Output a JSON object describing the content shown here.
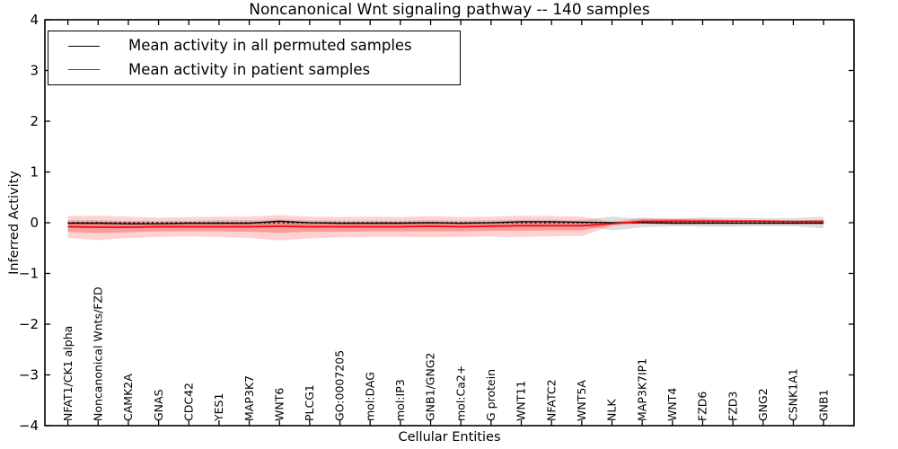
{
  "chart_data": {
    "type": "line",
    "title": "Noncanonical Wnt signaling pathway -- 140 samples",
    "xlabel": "Cellular Entities",
    "ylabel": "Inferred Activity",
    "ylim": [
      -4,
      4
    ],
    "yticks": [
      4,
      3,
      2,
      1,
      0,
      -1,
      -2,
      -3,
      -4
    ],
    "ytick_labels": [
      "4",
      "3",
      "2",
      "1",
      "0",
      "−1",
      "−2",
      "−3",
      "−4"
    ],
    "grid": false,
    "legend_position": "upper left",
    "categories": [
      "NFAT1/CK1 alpha",
      "Noncanonical Wnts/FZD",
      "CAMK2A",
      "GNAS",
      "CDC42",
      "YES1",
      "MAP3K7",
      "WNT6",
      "PLCG1",
      "GO:0007205",
      "mol:DAG",
      "mol:IP3",
      "GNB1/GNG2",
      "mol:Ca2+",
      "G protein",
      "WNT11",
      "NFATC2",
      "WNT5A",
      "NLK",
      "MAP3K7IP1",
      "WNT4",
      "FZD6",
      "FZD3",
      "GNG2",
      "CSNK1A1",
      "GNB1"
    ],
    "series": [
      {
        "name": "Mean activity in all permuted samples",
        "color": "#000000",
        "line_style": "solid",
        "values": [
          -0.01,
          -0.01,
          -0.02,
          -0.02,
          -0.01,
          -0.01,
          -0.01,
          0.03,
          0.0,
          -0.01,
          -0.01,
          -0.01,
          0.0,
          -0.01,
          0.0,
          0.02,
          0.02,
          0.01,
          0.0,
          0.0,
          -0.01,
          -0.01,
          -0.01,
          -0.01,
          -0.01,
          -0.01
        ]
      },
      {
        "name": "Mean activity in patient samples",
        "color": "#ff0000",
        "line_style": "solid",
        "values": [
          -0.08,
          -0.09,
          -0.09,
          -0.08,
          -0.08,
          -0.08,
          -0.08,
          -0.07,
          -0.08,
          -0.08,
          -0.08,
          -0.08,
          -0.07,
          -0.08,
          -0.07,
          -0.06,
          -0.06,
          -0.06,
          -0.02,
          0.025,
          0.03,
          0.03,
          0.03,
          0.03,
          0.025,
          0.025
        ]
      }
    ],
    "reference_line": {
      "y": 0,
      "color": "#000000",
      "line_style": "dotted"
    },
    "bands": [
      {
        "name": "permuted samples std band",
        "color": "#999999",
        "opacity": 0.32,
        "upper": [
          0.06,
          0.05,
          0.04,
          0.04,
          0.04,
          0.05,
          0.05,
          0.07,
          0.05,
          0.04,
          0.04,
          0.04,
          0.05,
          0.04,
          0.05,
          0.06,
          0.06,
          0.05,
          0.12,
          0.08,
          0.07,
          0.1,
          0.1,
          0.09,
          0.09,
          0.12
        ],
        "lower": [
          -0.08,
          -0.08,
          -0.08,
          -0.07,
          -0.07,
          -0.07,
          -0.07,
          -0.05,
          -0.06,
          -0.07,
          -0.06,
          -0.06,
          -0.06,
          -0.06,
          -0.06,
          -0.05,
          -0.05,
          -0.06,
          -0.15,
          -0.09,
          -0.07,
          -0.08,
          -0.08,
          -0.07,
          -0.07,
          -0.11
        ]
      },
      {
        "name": "patient samples std band outer",
        "color": "#ff3030",
        "opacity": 0.22,
        "upper": [
          0.13,
          0.14,
          0.12,
          0.1,
          0.11,
          0.12,
          0.12,
          0.15,
          0.12,
          0.11,
          0.12,
          0.11,
          0.13,
          0.11,
          0.12,
          0.14,
          0.13,
          0.12,
          0.02,
          0.1,
          0.09,
          0.08,
          0.06,
          0.05,
          0.04,
          0.06
        ],
        "lower": [
          -0.3,
          -0.34,
          -0.3,
          -0.28,
          -0.27,
          -0.28,
          -0.3,
          -0.35,
          -0.31,
          -0.29,
          -0.28,
          -0.28,
          -0.29,
          -0.28,
          -0.27,
          -0.28,
          -0.27,
          -0.26,
          -0.06,
          -0.02,
          -0.03,
          -0.02,
          -0.01,
          0.0,
          0.0,
          -0.03
        ],
        "name2": ""
      },
      {
        "name": "patient samples std band inner",
        "color": "#ee2020",
        "opacity": 0.3,
        "upper": [
          0.02,
          0.02,
          0.01,
          0.0,
          0.01,
          0.01,
          0.01,
          0.03,
          0.01,
          0.0,
          0.01,
          0.01,
          0.02,
          0.0,
          0.01,
          0.03,
          0.02,
          0.01,
          0.0,
          0.07,
          0.07,
          0.06,
          0.05,
          0.05,
          0.04,
          0.05
        ],
        "lower": [
          -0.18,
          -0.2,
          -0.19,
          -0.17,
          -0.17,
          -0.17,
          -0.18,
          -0.2,
          -0.18,
          -0.18,
          -0.17,
          -0.17,
          -0.17,
          -0.17,
          -0.16,
          -0.16,
          -0.15,
          -0.15,
          -0.04,
          0.0,
          -0.01,
          0.0,
          0.01,
          0.01,
          0.01,
          0.0
        ]
      }
    ]
  },
  "legend": {
    "entries": [
      {
        "label": "Mean activity in all permuted samples",
        "color": "#000000"
      },
      {
        "label": "Mean activity in patient samples",
        "color": "#ff0000"
      }
    ]
  }
}
